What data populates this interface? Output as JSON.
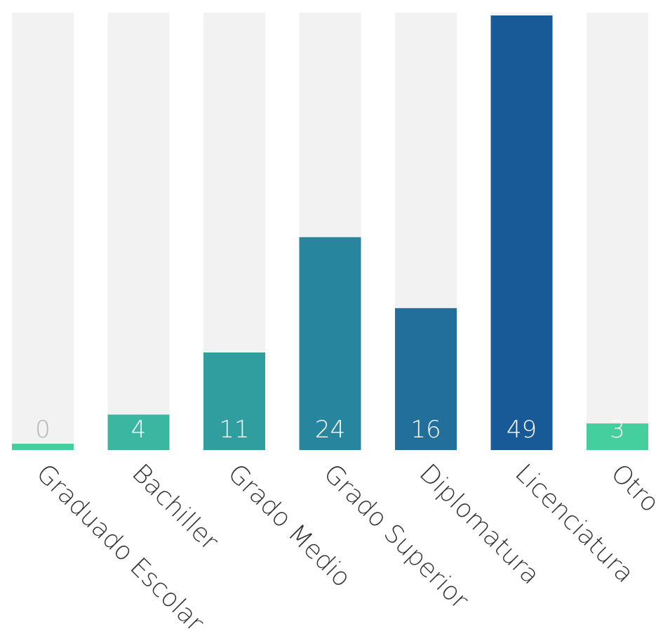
{
  "chart_data": {
    "type": "bar",
    "categories": [
      "Graduado Escolar",
      "Bachiller",
      "Grado Medio",
      "Grado Superior",
      "Diplomatura",
      "Licenciatura",
      "Otro"
    ],
    "values": [
      0,
      4,
      11,
      24,
      16,
      49,
      3
    ],
    "ylim": [
      0,
      49
    ],
    "title": "",
    "xlabel": "",
    "ylabel": "",
    "grid": false,
    "legend": "none",
    "track_color": "#f2f2f2",
    "bar_colors": [
      "#45cf9f",
      "#3bb6a1",
      "#309e9f",
      "#27869d",
      "#226f9c",
      "#185a97",
      "#45cf9f"
    ],
    "value_label_color": "#ffffff",
    "zero_label_color": "#b3b3b3"
  }
}
